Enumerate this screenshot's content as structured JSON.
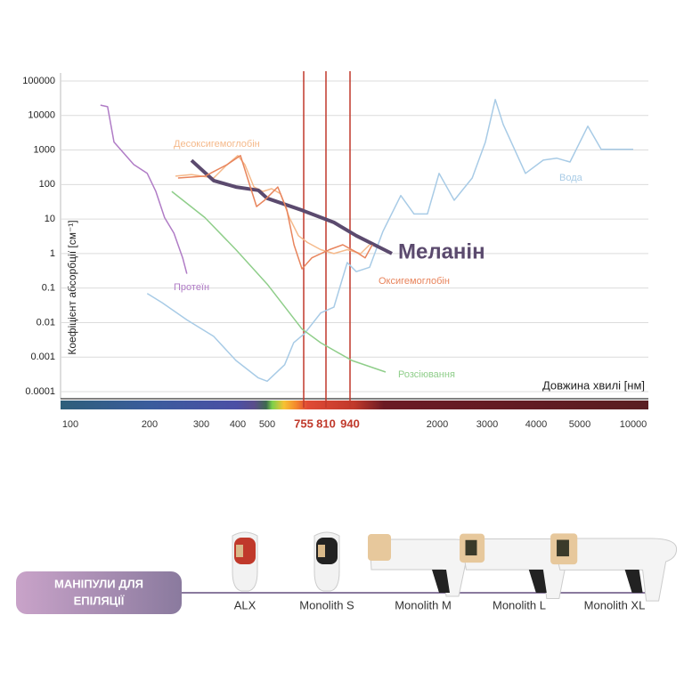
{
  "chart_data": {
    "type": "line",
    "y_label": "Коефіцієнт абсорбції [см⁻¹]",
    "x_label": "Довжина хвилі [нм]",
    "log_y": true,
    "grid": true,
    "ylim": [
      0.0001,
      100000
    ],
    "yticks": [
      0.0001,
      0.001,
      0.01,
      0.1,
      1,
      10,
      100,
      1000,
      10000,
      100000
    ],
    "xticks": [
      100,
      200,
      300,
      400,
      500,
      755,
      810,
      940,
      2000,
      3000,
      4000,
      5000,
      10000
    ],
    "vlines": {
      "values": [
        755,
        810,
        940
      ],
      "color": "#c0392b"
    },
    "series": [
      {
        "name": "Десоксигемоглобін",
        "color": "#f5b98a",
        "x": [
          250,
          281,
          334,
          371,
          400,
          424,
          455,
          485,
          531,
          593,
          655,
          718,
          764,
          797,
          853,
          925,
          1070,
          1178
        ],
        "values": [
          175,
          195,
          155,
          380,
          690,
          380,
          85,
          63,
          76,
          54,
          11,
          3.3,
          2.1,
          1.3,
          1,
          1.3,
          1,
          1.8
        ]
      },
      {
        "name": "Вода",
        "color": "#a8cbe6",
        "x": [
          197,
          224,
          272,
          334,
          395,
          470,
          500,
          622,
          685,
          757,
          797,
          853,
          925,
          1016,
          1178,
          1340,
          1556,
          1718,
          1880,
          2036,
          2340,
          2700,
          2964,
          3165,
          3327,
          3782,
          4163,
          4469,
          4776,
          5750,
          7000,
          10000
        ],
        "values": [
          0.07,
          0.038,
          0.012,
          0.004,
          0.0008,
          0.00025,
          0.0002,
          0.0006,
          0.0026,
          0.0048,
          0.019,
          0.028,
          0.55,
          0.3,
          0.4,
          4.4,
          48,
          14,
          14,
          210,
          35,
          155,
          1700,
          29000,
          5500,
          210,
          510,
          580,
          450,
          4900,
          1050,
          1050
        ]
      },
      {
        "name": "Меланін",
        "color": "#5b4a6e",
        "x": [
          281,
          334,
          395,
          470,
          500,
          743,
          853,
          1016,
          1448
        ],
        "values": [
          500,
          130,
          85,
          68,
          40,
          18,
          8,
          3.3,
          1
        ]
      },
      {
        "name": "Оксигемоглобін",
        "color": "#e8845c",
        "x": [
          255,
          310,
          371,
          409,
          433,
          464,
          491,
          574,
          637,
          687,
          743,
          775,
          829,
          901,
          1016,
          1124,
          1210
        ],
        "values": [
          155,
          175,
          380,
          690,
          155,
          23,
          35,
          85,
          19,
          1.8,
          0.36,
          0.75,
          1.3,
          1.8,
          1.1,
          0.75,
          1.8
        ]
      },
      {
        "name": "Протеїн",
        "color": "#b07cc6",
        "x": [
          138,
          147,
          155,
          180,
          197,
          212,
          229,
          247,
          264,
          272
        ],
        "values": [
          20000,
          18000,
          1700,
          380,
          210,
          63,
          11,
          3.9,
          0.75,
          0.26
        ]
      },
      {
        "name": "Розсіювання",
        "color": "#8fce8a",
        "x": [
          243,
          310,
          395,
          500,
          743,
          797,
          962,
          1373
        ],
        "values": [
          63,
          11,
          1.3,
          0.13,
          0.0065,
          0.0026,
          0.0008,
          0.00037
        ]
      }
    ]
  },
  "products": {
    "label_lines": [
      "МАНІПУЛИ ДЛЯ",
      "ЕПІЛЯЦІЇ"
    ],
    "items": [
      "ALX",
      "Monolith S",
      "Monolith M",
      "Monolith L",
      "Monolith XL"
    ]
  }
}
